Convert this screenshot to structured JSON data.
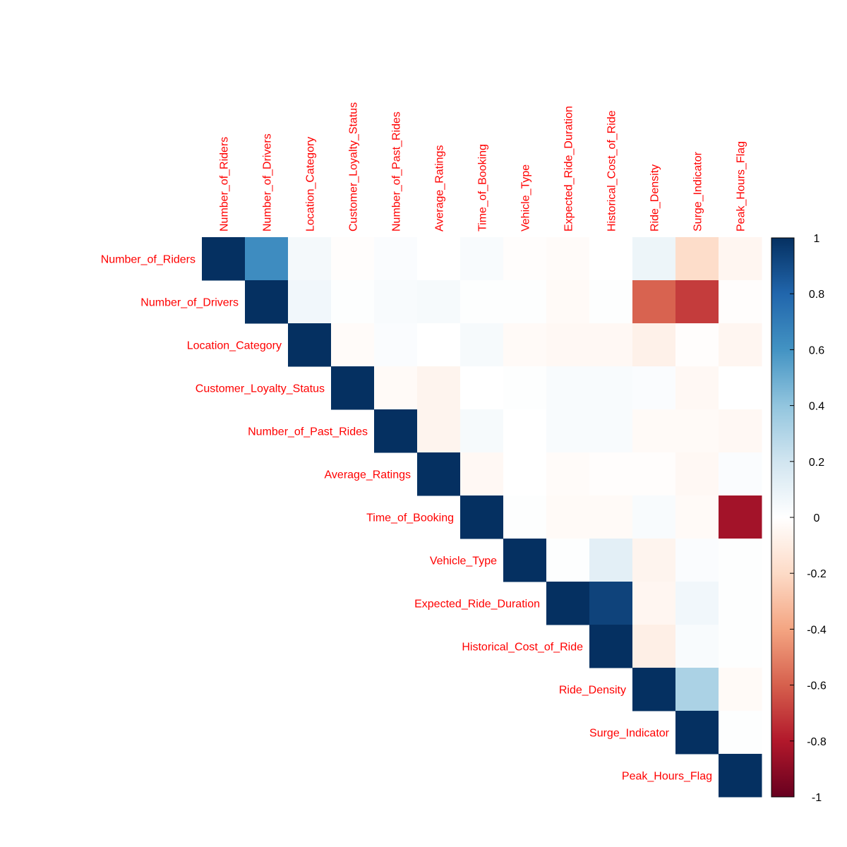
{
  "chart_data": {
    "type": "heatmap",
    "layout": "upper",
    "variables": [
      "Number_of_Riders",
      "Number_of_Drivers",
      "Location_Category",
      "Customer_Loyalty_Status",
      "Number_of_Past_Rides",
      "Average_Ratings",
      "Time_of_Booking",
      "Vehicle_Type",
      "Expected_Ride_Duration",
      "Historical_Cost_of_Ride",
      "Ride_Density",
      "Surge_Indicator",
      "Peak_Hours_Flag"
    ],
    "matrix": [
      [
        1.0,
        0.63,
        0.05,
        -0.01,
        0.02,
        0.0,
        0.03,
        -0.01,
        -0.02,
        0.0,
        0.08,
        -0.19,
        -0.05
      ],
      [
        null,
        1.0,
        0.06,
        0.01,
        0.03,
        0.04,
        0.01,
        0.01,
        -0.03,
        0.01,
        -0.59,
        -0.7,
        -0.01
      ],
      [
        null,
        null,
        1.0,
        -0.02,
        0.02,
        0.0,
        0.04,
        -0.03,
        -0.04,
        -0.04,
        -0.08,
        -0.01,
        -0.05
      ],
      [
        null,
        null,
        null,
        1.0,
        -0.03,
        -0.06,
        0.0,
        0.01,
        0.03,
        0.03,
        0.02,
        -0.04,
        0.0
      ],
      [
        null,
        null,
        null,
        null,
        1.0,
        -0.06,
        0.04,
        0.0,
        0.03,
        0.03,
        -0.03,
        -0.03,
        -0.04
      ],
      [
        null,
        null,
        null,
        null,
        null,
        1.0,
        -0.04,
        0.0,
        -0.02,
        -0.01,
        -0.01,
        -0.04,
        0.02
      ],
      [
        null,
        null,
        null,
        null,
        null,
        null,
        1.0,
        0.01,
        -0.03,
        -0.03,
        0.03,
        -0.03,
        -0.84
      ],
      [
        null,
        null,
        null,
        null,
        null,
        null,
        null,
        1.0,
        0.01,
        0.12,
        -0.06,
        0.02,
        0.01
      ],
      [
        null,
        null,
        null,
        null,
        null,
        null,
        null,
        null,
        1.0,
        0.93,
        -0.05,
        0.06,
        0.01
      ],
      [
        null,
        null,
        null,
        null,
        null,
        null,
        null,
        null,
        null,
        1.0,
        -0.09,
        0.03,
        0.01
      ],
      [
        null,
        null,
        null,
        null,
        null,
        null,
        null,
        null,
        null,
        null,
        1.0,
        0.32,
        -0.03
      ],
      [
        null,
        null,
        null,
        null,
        null,
        null,
        null,
        null,
        null,
        null,
        null,
        1.0,
        0.01
      ],
      [
        null,
        null,
        null,
        null,
        null,
        null,
        null,
        null,
        null,
        null,
        null,
        null,
        1.0
      ]
    ],
    "color_scale": {
      "min": -1,
      "max": 1,
      "ticks": [
        "1",
        "0.8",
        "0.6",
        "0.4",
        "0.2",
        "0",
        "-0.2",
        "-0.4",
        "-0.6",
        "-0.8",
        "-1"
      ],
      "colors": [
        "#67001F",
        "#B2182B",
        "#D6604D",
        "#F4A582",
        "#FDDBC7",
        "#FFFFFF",
        "#D1E5F0",
        "#92C5DE",
        "#4393C3",
        "#2166AC",
        "#053061"
      ]
    },
    "label_color": "#FF0000",
    "legend_position": "right"
  }
}
